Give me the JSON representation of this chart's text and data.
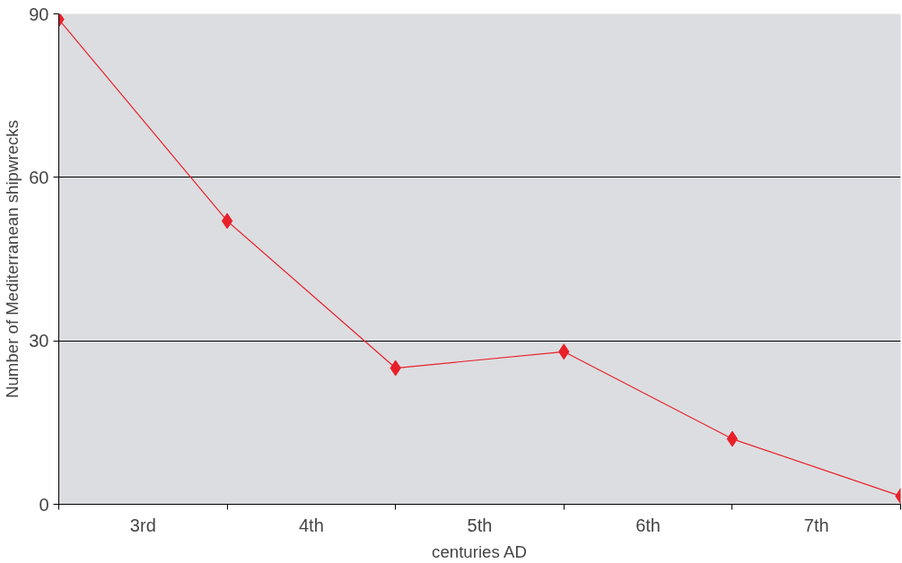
{
  "chart_data": {
    "type": "line",
    "ylabel": "Number of Mediterranean shipwrecks",
    "xlabel": "centuries AD",
    "categories": [
      null,
      null,
      null,
      null,
      null,
      null
    ],
    "annotations": [
      "3rd",
      "4th",
      "5th",
      "6th",
      "7th"
    ],
    "series": [
      {
        "color": "#e8202a",
        "values": [
          89,
          52,
          25,
          28,
          12,
          1.5
        ]
      }
    ],
    "ylim": [
      0,
      90
    ],
    "yticks": [
      0,
      30,
      60,
      90
    ],
    "grid": "y",
    "marker": "diamond",
    "line_style": "solid"
  }
}
